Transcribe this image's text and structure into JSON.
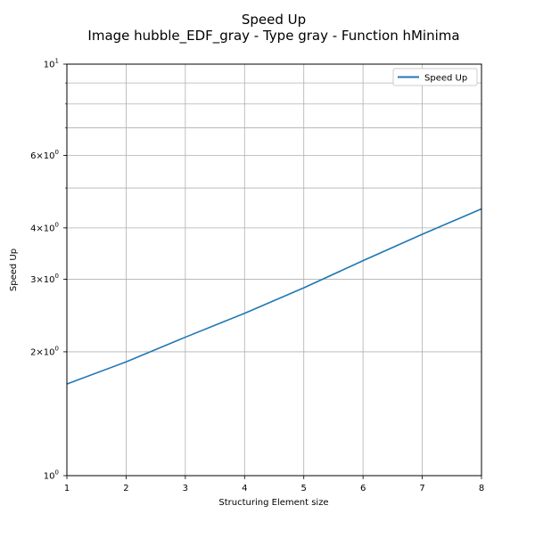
{
  "chart_data": {
    "type": "line",
    "title": "Speed Up",
    "subtitle": "Image hubble_EDF_gray - Type gray - Function hMinima",
    "xlabel": "Structuring Element size",
    "ylabel": "Speed Up",
    "x": [
      1,
      2,
      3,
      4,
      5,
      6,
      7,
      8
    ],
    "series": [
      {
        "name": "Speed Up",
        "values": [
          1.67,
          1.89,
          2.17,
          2.48,
          2.86,
          3.33,
          3.86,
          4.45
        ]
      }
    ],
    "xlim": [
      1,
      8
    ],
    "ylim": [
      1,
      10
    ],
    "yscale": "log",
    "xticks": [
      "1",
      "2",
      "3",
      "4",
      "5",
      "6",
      "7",
      "8"
    ],
    "yticks": [
      {
        "value": 1,
        "base": "10",
        "exp": "0",
        "mult": ""
      },
      {
        "value": 2,
        "base": "10",
        "exp": "0",
        "mult": "2×"
      },
      {
        "value": 3,
        "base": "10",
        "exp": "0",
        "mult": "3×"
      },
      {
        "value": 4,
        "base": "10",
        "exp": "0",
        "mult": "4×"
      },
      {
        "value": 6,
        "base": "10",
        "exp": "0",
        "mult": "6×"
      },
      {
        "value": 10,
        "base": "10",
        "exp": "1",
        "mult": ""
      }
    ],
    "grid": true,
    "legend_position": "top-right",
    "colors": {
      "series": "#1f77b4",
      "grid": "#b0b0b0"
    }
  }
}
